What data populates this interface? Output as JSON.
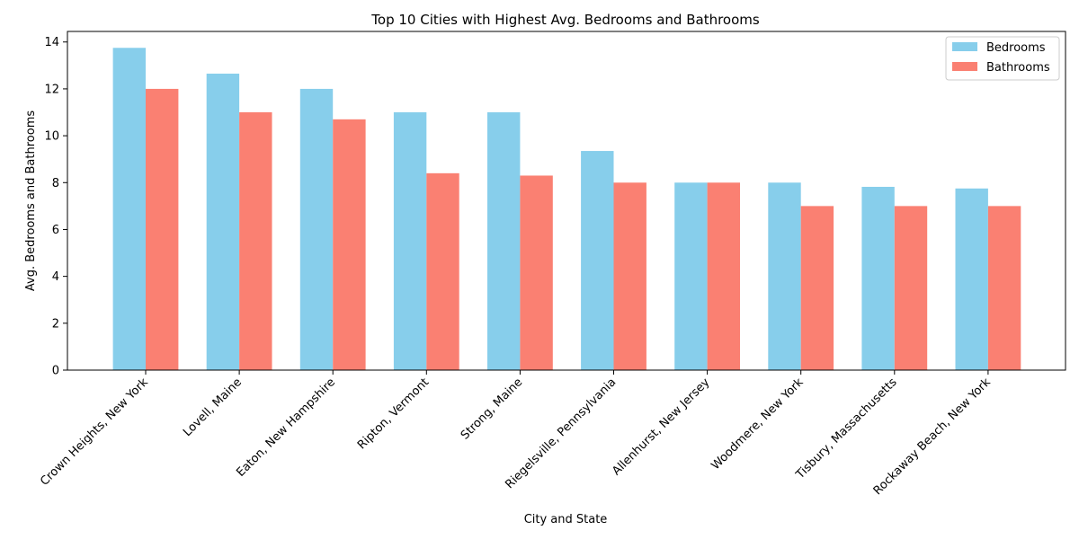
{
  "chart_data": {
    "type": "bar",
    "title": "Top 10 Cities with Highest Avg. Bedrooms and Bathrooms",
    "xlabel": "City and State",
    "ylabel": "Avg. Bedrooms and Bathrooms",
    "ylim": [
      0,
      14.45
    ],
    "yticks": [
      0,
      2,
      4,
      6,
      8,
      10,
      12,
      14
    ],
    "grid": false,
    "legend_position": "top-right",
    "categories": [
      "Crown Heights, New York",
      "Lovell, Maine",
      "Eaton, New Hampshire",
      "Ripton, Vermont",
      "Strong, Maine",
      "Riegelsville, Pennsylvania",
      "Allenhurst, New Jersey",
      "Woodmere, New York",
      "Tisbury, Massachusetts",
      "Rockaway Beach, New York"
    ],
    "series": [
      {
        "name": "Bedrooms",
        "color": "#87ceeb",
        "values": [
          13.75,
          12.65,
          12.0,
          11.0,
          11.0,
          9.35,
          8.0,
          8.0,
          7.82,
          7.75
        ]
      },
      {
        "name": "Bathrooms",
        "color": "#fa8072",
        "values": [
          12.0,
          11.0,
          10.7,
          8.4,
          8.3,
          8.0,
          8.0,
          7.0,
          7.0,
          7.0
        ]
      }
    ]
  }
}
